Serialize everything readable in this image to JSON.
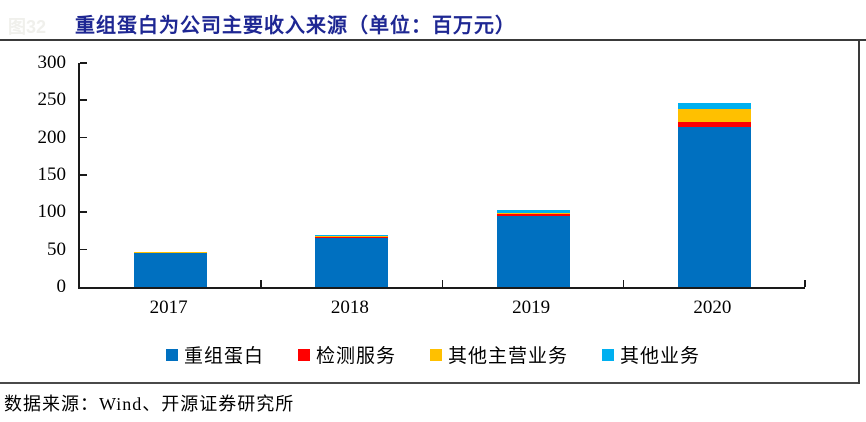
{
  "watermark": "图32",
  "header": {
    "title": "重组蛋白为公司主要收入来源（单位：百万元）",
    "title_color": "#1e2793"
  },
  "source_note": "数据来源：Wind、开源证券研究所",
  "chart_data": {
    "type": "bar",
    "stacked": true,
    "title": "重组蛋白为公司主要收入来源（单位：百万元）",
    "unit": "百万元",
    "categories": [
      "2017",
      "2018",
      "2019",
      "2020"
    ],
    "series": [
      {
        "name": "重组蛋白",
        "color": "#0070C0",
        "values": [
          45,
          66,
          95,
          214
        ]
      },
      {
        "name": "检测服务",
        "color": "#FF0000",
        "values": [
          0.4,
          0.5,
          2.5,
          7
        ]
      },
      {
        "name": "其他主营业务",
        "color": "#FFC000",
        "values": [
          1.2,
          1.5,
          1.5,
          17
        ]
      },
      {
        "name": "其他业务",
        "color": "#00B0F0",
        "values": [
          0.8,
          2,
          4,
          8
        ]
      }
    ],
    "totals": [
      47.4,
      70,
      103,
      246
    ],
    "xlabel": "",
    "ylabel": "",
    "ylim": [
      0,
      300
    ],
    "yticks": [
      0,
      50,
      100,
      150,
      200,
      250,
      300
    ],
    "grid": false,
    "legend_position": "bottom"
  }
}
